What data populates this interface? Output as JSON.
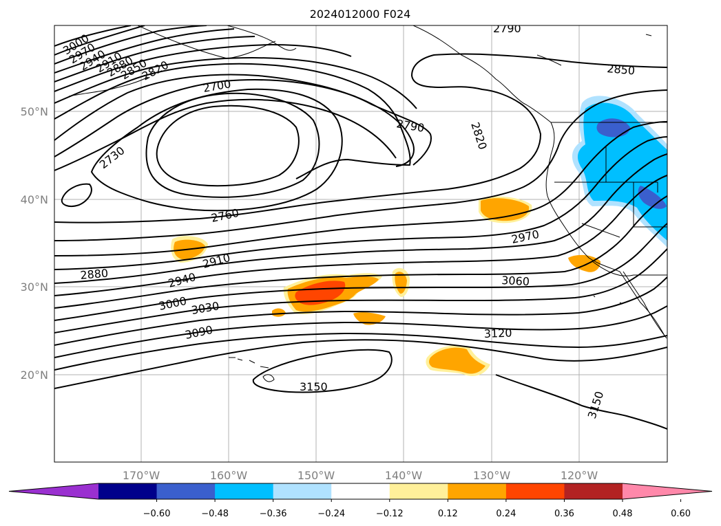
{
  "title": "2024012000 F024",
  "lat_labels": [
    "50°N",
    "40°N",
    "30°N",
    "20°N"
  ],
  "lon_labels": [
    "170°W",
    "160°W",
    "150°W",
    "140°W",
    "130°W",
    "120°W"
  ],
  "contour_labels": [
    "3000",
    "2970",
    "2940",
    "2910",
    "2880",
    "2850",
    "2820",
    "2700",
    "2730",
    "2760",
    "2790",
    "2820",
    "2790",
    "2850",
    "2880",
    "2910",
    "2940",
    "2970",
    "3000",
    "3030",
    "3060",
    "3090",
    "3120",
    "3150",
    "3150"
  ],
  "colorbar": {
    "ticks": [
      "−0.60",
      "−0.48",
      "−0.36",
      "−0.24",
      "−0.12",
      "0.12",
      "0.24",
      "0.36",
      "0.48",
      "0.60"
    ],
    "colors": [
      "#9a30d0",
      "#00008b",
      "#3a5fcd",
      "#00bfff",
      "#b0e2ff",
      "#ffffff",
      "#fff09a",
      "#ffa500",
      "#ff4500",
      "#b22222",
      "#ff88aa"
    ]
  }
}
